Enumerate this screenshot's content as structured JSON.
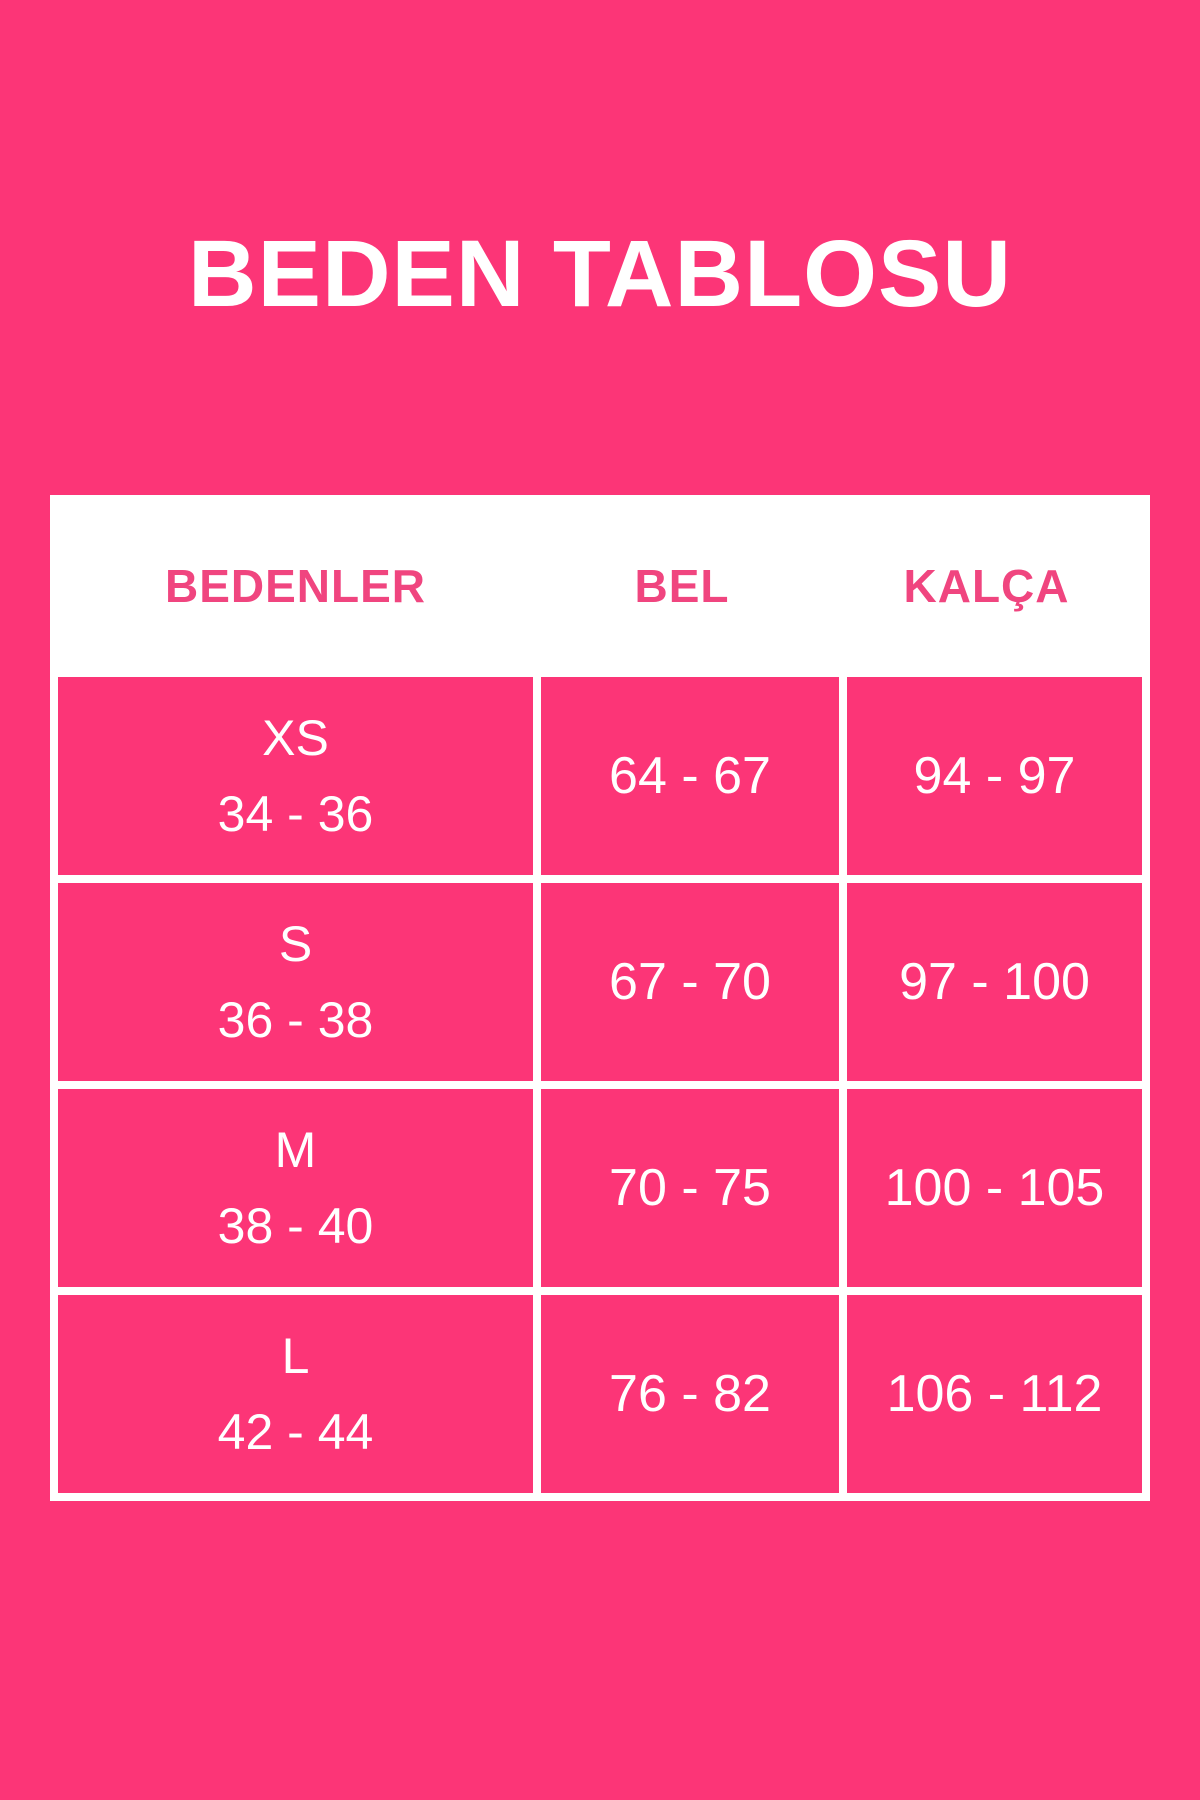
{
  "title": "BEDEN TABLOSU",
  "colors": {
    "background_pink": "#FC3577",
    "cell_pink": "#FC3577",
    "table_background": "#FFFFFF",
    "header_text_pink": "#F0457F",
    "cell_text_white": "#FFFFFF"
  },
  "chart_data": {
    "type": "table",
    "title": "BEDEN TABLOSU",
    "columns": [
      "BEDENLER",
      "BEL",
      "KALÇA"
    ],
    "rows": [
      {
        "size": "XS",
        "size_range": "34 - 36",
        "bel": "64 - 67",
        "kalca": "94 - 97"
      },
      {
        "size": "S",
        "size_range": "36 - 38",
        "bel": "67 - 70",
        "kalca": "97 - 100"
      },
      {
        "size": "M",
        "size_range": "38 - 40",
        "bel": "70 - 75",
        "kalca": "100 - 105"
      },
      {
        "size": "L",
        "size_range": "42 - 44",
        "bel": "76 - 82",
        "kalca": "106 - 112"
      }
    ]
  }
}
